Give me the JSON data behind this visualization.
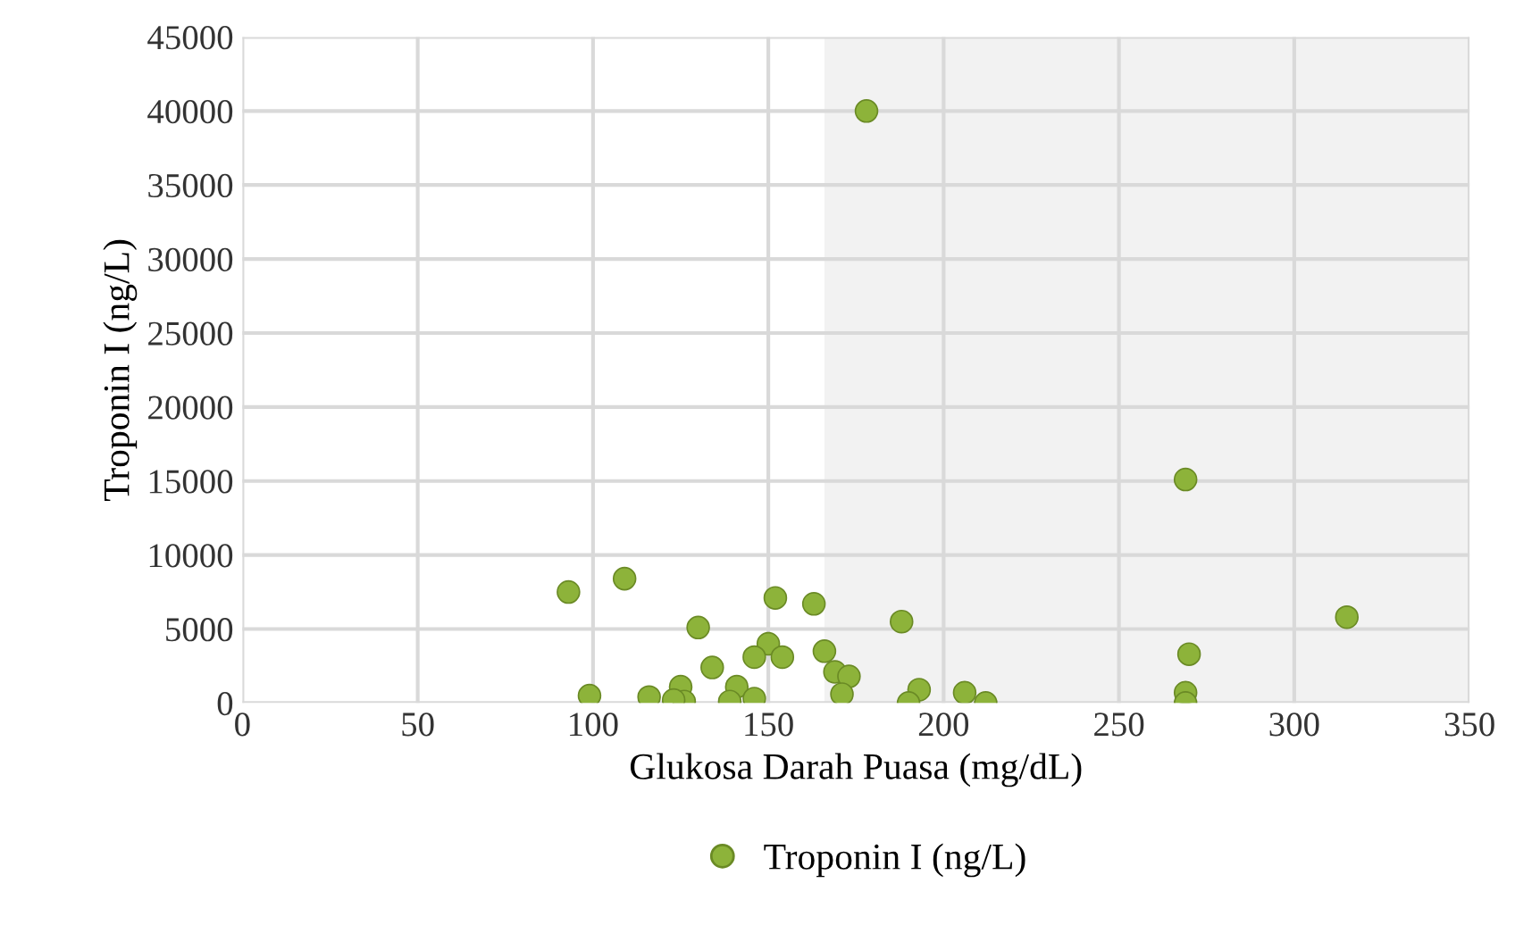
{
  "chart_data": {
    "type": "scatter",
    "xlabel": "Glukosa Darah Puasa (mg/dL)",
    "ylabel": "Troponin I (ng/L)",
    "xlim": [
      0,
      350
    ],
    "xticks": [
      0,
      50,
      100,
      150,
      200,
      250,
      300,
      350
    ],
    "ylim": [
      0,
      45000
    ],
    "yticks": [
      0,
      5000,
      10000,
      15000,
      20000,
      25000,
      30000,
      35000,
      40000,
      45000
    ],
    "grid": true,
    "legend": "bottom",
    "marker": "circle",
    "bands": [
      {
        "axis": "x",
        "from": 166,
        "to": 350,
        "color": "#f2f2f2"
      }
    ],
    "series": [
      {
        "name": "Troponin I (ng/L)",
        "color": "#8db33a",
        "x": [
          178,
          269,
          315,
          270,
          269,
          269,
          193,
          190,
          206,
          212,
          188,
          93,
          109,
          152,
          163,
          130,
          150,
          146,
          154,
          166,
          134,
          169,
          173,
          99,
          116,
          125,
          126,
          141,
          146,
          139,
          171,
          123
        ],
        "values": [
          40000,
          15100,
          5800,
          3300,
          700,
          0,
          900,
          0,
          700,
          0,
          5500,
          7500,
          8400,
          7100,
          6700,
          5100,
          4000,
          3100,
          3100,
          3500,
          2400,
          2100,
          1800,
          500,
          400,
          1100,
          100,
          1100,
          300,
          100,
          600,
          200
        ]
      }
    ]
  }
}
